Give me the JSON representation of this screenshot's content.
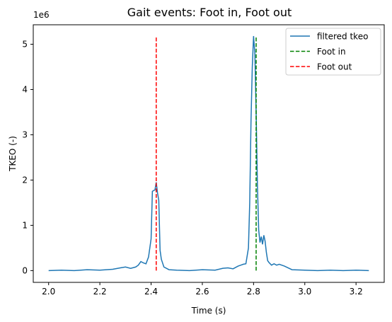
{
  "chart_data": {
    "type": "line",
    "title": "Gait events: Foot in, Foot out",
    "xlabel": "Time (s)",
    "ylabel": "TKEO (-)",
    "y_offset_label": "1e6",
    "xlim": [
      1.94,
      3.31
    ],
    "ylim": [
      -0.26,
      5.43
    ],
    "y_unit_scale": 1000000,
    "x_ticks": [
      2.0,
      2.2,
      2.4,
      2.6,
      2.8,
      3.0,
      3.2
    ],
    "x_tick_labels": [
      "2.0",
      "2.2",
      "2.4",
      "2.6",
      "2.8",
      "3.0",
      "3.2"
    ],
    "y_ticks": [
      0,
      1,
      2,
      3,
      4,
      5
    ],
    "y_tick_labels": [
      "0",
      "1",
      "2",
      "3",
      "4",
      "5"
    ],
    "grid": false,
    "legend_position": "top-right",
    "series": [
      {
        "name": "filtered tkeo",
        "color": "#1f77b4",
        "style": "solid",
        "x": [
          2.0,
          2.05,
          2.1,
          2.15,
          2.2,
          2.25,
          2.28,
          2.3,
          2.32,
          2.34,
          2.35,
          2.36,
          2.37,
          2.38,
          2.39,
          2.4,
          2.405,
          2.41,
          2.415,
          2.42,
          2.425,
          2.43,
          2.435,
          2.44,
          2.45,
          2.47,
          2.5,
          2.55,
          2.6,
          2.65,
          2.68,
          2.7,
          2.72,
          2.74,
          2.75,
          2.76,
          2.77,
          2.78,
          2.785,
          2.79,
          2.795,
          2.8,
          2.805,
          2.81,
          2.815,
          2.82,
          2.825,
          2.83,
          2.835,
          2.84,
          2.845,
          2.85,
          2.855,
          2.86,
          2.87,
          2.88,
          2.89,
          2.9,
          2.92,
          2.95,
          3.0,
          3.05,
          3.1,
          3.15,
          3.2,
          3.25
        ],
        "y": [
          0.0,
          0.01,
          0.0,
          0.02,
          0.01,
          0.03,
          0.06,
          0.08,
          0.05,
          0.08,
          0.12,
          0.2,
          0.17,
          0.15,
          0.3,
          0.7,
          1.75,
          1.77,
          1.78,
          1.95,
          1.72,
          1.55,
          0.45,
          0.25,
          0.08,
          0.02,
          0.01,
          0.0,
          0.02,
          0.01,
          0.05,
          0.06,
          0.04,
          0.1,
          0.12,
          0.14,
          0.15,
          0.5,
          1.5,
          3.3,
          4.5,
          5.18,
          4.8,
          3.5,
          1.9,
          0.9,
          0.62,
          0.75,
          0.58,
          0.78,
          0.65,
          0.4,
          0.22,
          0.18,
          0.12,
          0.15,
          0.12,
          0.14,
          0.1,
          0.02,
          0.01,
          0.0,
          0.01,
          0.0,
          0.01,
          0.0
        ]
      },
      {
        "name": "Foot in",
        "color": "#008000",
        "style": "dashed",
        "x": [
          2.81,
          2.81
        ],
        "y": [
          0.0,
          5.18
        ]
      },
      {
        "name": "Foot out",
        "color": "#ff0000",
        "style": "dashed",
        "x": [
          2.42,
          2.42
        ],
        "y": [
          0.0,
          5.18
        ]
      }
    ]
  }
}
